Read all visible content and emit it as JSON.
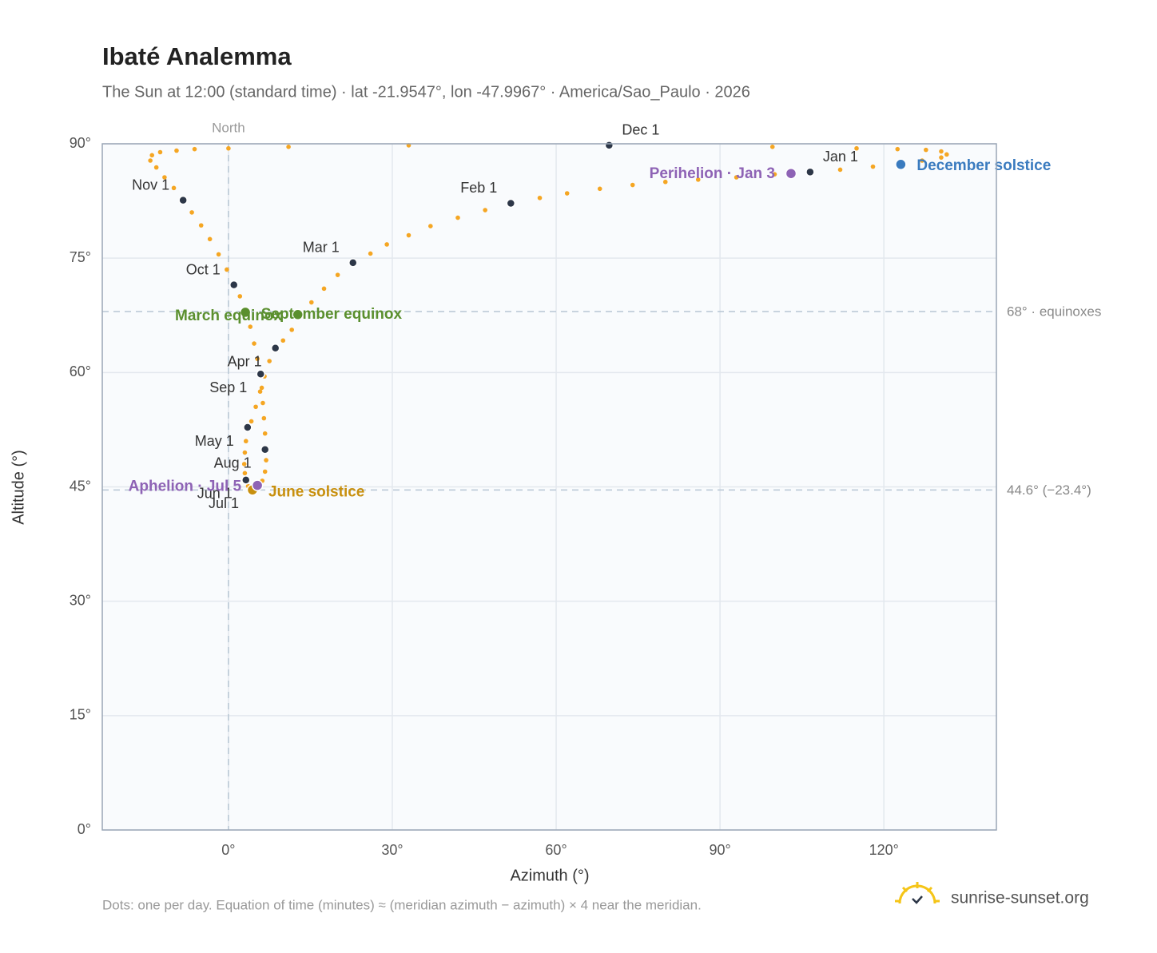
{
  "chart_data": {
    "type": "scatter",
    "title": "Ibaté Analemma",
    "subtitle": "The Sun at 12:00 (standard time) · lat -21.9547°, lon -47.9967° · America/Sao_Paulo · 2026",
    "x_label": "Azimuth (°)",
    "y_label": "Altitude (°)",
    "footnote": "Dots: one per day. Equation of time (minutes) ≈ (meridian azimuth − azimuth) × 4 near the meridian.",
    "brand": "sunrise-sunset.org",
    "xlim": [
      -23.1,
      140.6
    ],
    "ylim": [
      0,
      90
    ],
    "xticks": [
      {
        "value": 0,
        "label": "0°"
      },
      {
        "value": 30,
        "label": "30°"
      },
      {
        "value": 60,
        "label": "60°"
      },
      {
        "value": 90,
        "label": "90°"
      },
      {
        "value": 120,
        "label": "120°"
      }
    ],
    "yticks": [
      {
        "value": 0,
        "label": "0°"
      },
      {
        "value": 15,
        "label": "15°"
      },
      {
        "value": 30,
        "label": "30°"
      },
      {
        "value": 45,
        "label": "45°"
      },
      {
        "value": 60,
        "label": "60°"
      },
      {
        "value": 75,
        "label": "75°"
      },
      {
        "value": 90,
        "label": "90°"
      }
    ],
    "grid": true,
    "reference_lines": [
      {
        "value": 68,
        "label": "68° · equinoxes"
      },
      {
        "value": 44.6,
        "label": "44.6° (−23.4°)"
      }
    ],
    "vertical_reference": {
      "value": 0,
      "label": "North"
    },
    "series": [
      {
        "color": "#f5a623",
        "x": [
          106.5,
          100,
          93,
          86,
          80,
          74,
          68,
          62,
          57,
          51.7,
          47,
          42,
          37,
          33,
          29,
          26,
          22.8,
          20,
          17.5,
          15.2,
          13.3,
          11.6,
          10,
          8.6,
          7.5,
          6.6,
          5.8,
          5,
          4.2,
          3.5,
          3.2,
          3,
          2.9,
          3,
          3.2,
          3.6,
          4.2,
          4.8,
          5.5,
          6.2,
          6.7,
          6.9,
          6.7,
          6.7,
          6.5,
          6.3,
          6.1,
          5.9,
          5.3,
          4.7,
          4,
          3.1,
          2.1,
          1,
          -0.3,
          -1.8,
          -3.4,
          -5,
          -6.7,
          -8.3,
          -10,
          -11.7,
          -13.2,
          -14.3,
          -14,
          -12.5,
          -9.5,
          -6.2,
          0,
          11,
          33,
          69.7,
          99.6,
          115,
          122.5,
          127.7,
          130.5,
          131.5,
          130.5,
          127,
          123.1,
          118,
          112
        ],
        "y": [
          86.3,
          86,
          85.6,
          85.3,
          85,
          84.6,
          84.1,
          83.5,
          82.9,
          82.2,
          81.3,
          80.3,
          79.2,
          78,
          76.8,
          75.6,
          74.4,
          72.8,
          71,
          69.2,
          67.4,
          65.6,
          64.2,
          63.2,
          61.5,
          59.5,
          57.5,
          55.5,
          53.6,
          52.8,
          51,
          49.5,
          48,
          46.8,
          45.9,
          45.1,
          44.6,
          44.5,
          44.9,
          45.8,
          47,
          48.5,
          49.9,
          52,
          54,
          56,
          58,
          59.8,
          61.8,
          63.8,
          66,
          68,
          70,
          71.5,
          73.5,
          75.5,
          77.5,
          79.3,
          81,
          82.6,
          84.2,
          85.6,
          86.9,
          87.8,
          88.5,
          88.9,
          89.1,
          89.3,
          89.4,
          89.6,
          89.8,
          89.8,
          89.6,
          89.4,
          89.3,
          89.2,
          89,
          88.6,
          88.2,
          87.8,
          87.3,
          87,
          86.6
        ]
      }
    ],
    "months": {
      "color": "#2d3748",
      "labels": [
        "Jan 1",
        "Feb 1",
        "Mar 1",
        "Apr 1",
        "May 1",
        "Jun 1",
        "Jul 1",
        "Aug 1",
        "Sep 1",
        "Oct 1",
        "Nov 1",
        "Dec 1"
      ],
      "x": [
        106.5,
        51.7,
        22.8,
        8.6,
        3.5,
        3.2,
        4.4,
        6.7,
        5.9,
        1,
        -8.3,
        69.7
      ],
      "y": [
        86.3,
        82.2,
        74.4,
        63.2,
        52.8,
        45.9,
        44.6,
        49.9,
        59.8,
        71.5,
        82.6,
        89.8
      ]
    },
    "events": {
      "labels": [
        "March equinox",
        "September equinox",
        "June solstice",
        "December solstice",
        "Perihelion · Jan 3",
        "Aphelion · Jul 5"
      ],
      "colors": [
        "#5a8f2e",
        "#5a8f2e",
        "#c8900f",
        "#3a7bbf",
        "#8e63b5",
        "#8e63b5"
      ],
      "x": [
        3.1,
        12.7,
        4.4,
        123.1,
        103,
        5.3
      ],
      "y": [
        67.9,
        67.6,
        44.6,
        87.3,
        86.1,
        45.2
      ]
    }
  }
}
